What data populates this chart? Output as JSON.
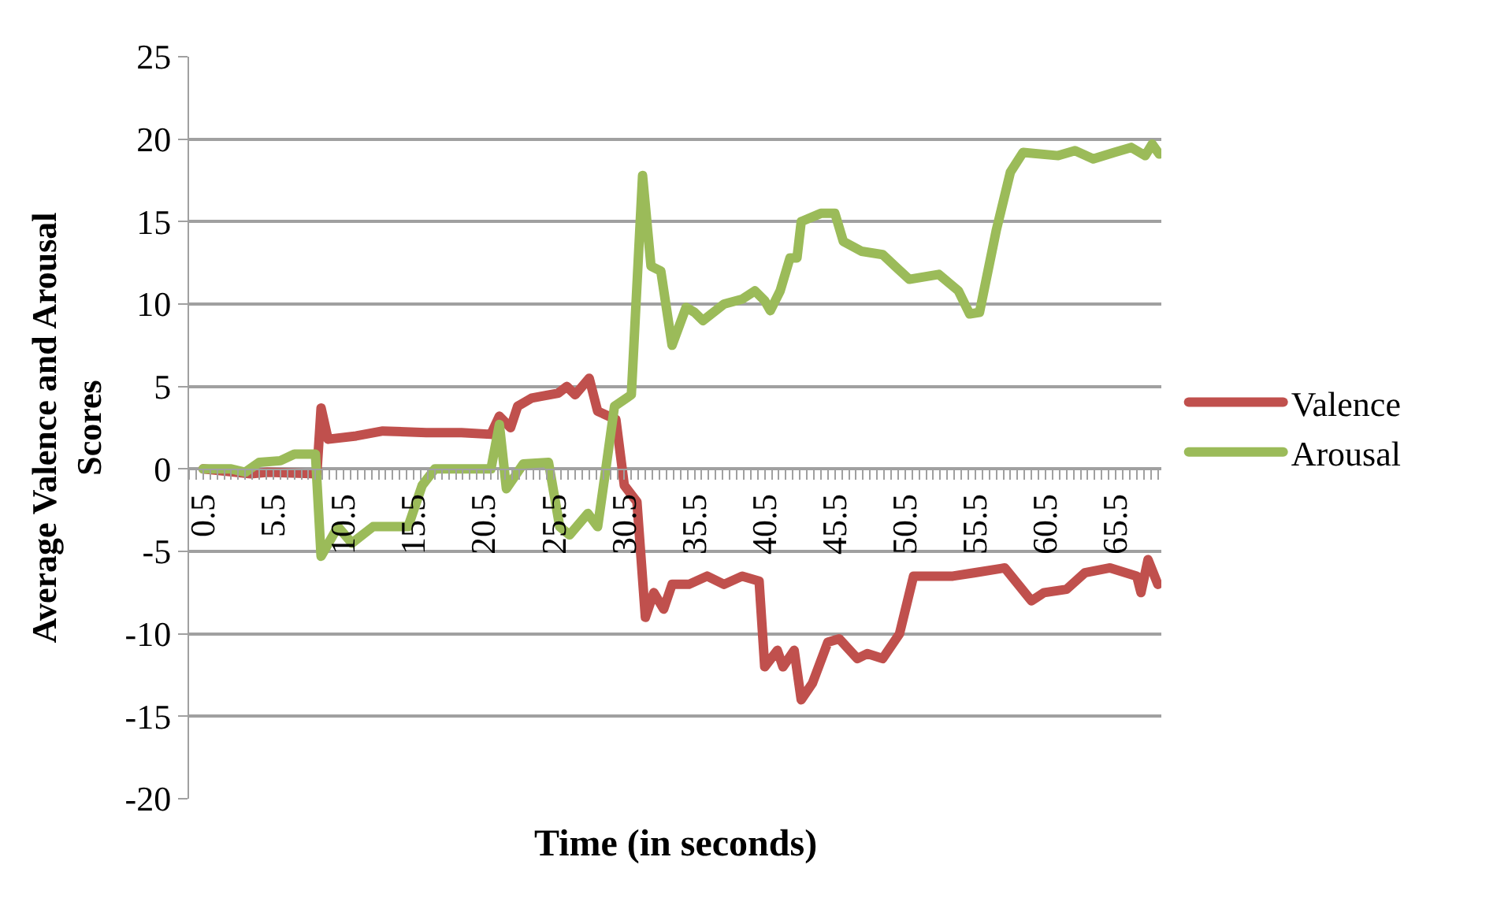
{
  "chart_data": {
    "type": "line",
    "xlabel": "Time (in seconds)",
    "ylabel": "Average Valence and Arousal Scores",
    "xlim": [
      -0.5,
      68.75
    ],
    "xticks": [
      0.5,
      5.5,
      10.5,
      15.5,
      20.5,
      25.5,
      30.5,
      35.5,
      40.5,
      45.5,
      50.5,
      55.5,
      60.5,
      65.5
    ],
    "ylim": [
      -20,
      25
    ],
    "yticks": [
      -20,
      -15,
      -10,
      -5,
      0,
      5,
      10,
      15,
      20,
      25
    ],
    "grid": "y",
    "legend": "right",
    "marker": "none",
    "line_style": "solid",
    "series": [
      {
        "name": "Valence",
        "color": "#c0504d",
        "x": [
          0.5,
          3.9,
          5.1,
          8.6,
          8.9,
          9.4,
          11.4,
          13.3,
          16.4,
          18.9,
          21,
          21.6,
          22.4,
          22.9,
          23.9,
          25.8,
          26.4,
          27,
          28,
          28.6,
          29.9,
          30.5,
          31.4,
          32,
          32.6,
          33.3,
          33.9,
          35.1,
          36.4,
          37.6,
          38.9,
          40.1,
          40.5,
          41.4,
          41.8,
          42.6,
          43.1,
          43.9,
          45,
          45.8,
          47.1,
          47.8,
          48.9,
          50.1,
          51.1,
          53.9,
          55.4,
          57.6,
          59.5,
          60.4,
          62,
          63.3,
          65.1,
          67,
          67.3,
          67.8,
          68.5
        ],
        "values": [
          0,
          -0.3,
          -0.2,
          -0.3,
          3.7,
          1.8,
          2,
          2.3,
          2.2,
          2.2,
          2.1,
          3.2,
          2.5,
          3.8,
          4.3,
          4.6,
          5,
          4.5,
          5.5,
          3.5,
          3,
          -1,
          -2,
          -9,
          -7.5,
          -8.5,
          -7,
          -7,
          -6.5,
          -7,
          -6.5,
          -6.8,
          -12,
          -11,
          -12,
          -11,
          -14,
          -13,
          -10.5,
          -10.3,
          -11.5,
          -11.2,
          -11.5,
          -10,
          -6.5,
          -6.5,
          -6.3,
          -6,
          -8,
          -7.5,
          -7.3,
          -6.3,
          -6,
          -6.5,
          -7.5,
          -5.5,
          -7
        ]
      },
      {
        "name": "Arousal",
        "color": "#9bbb59",
        "x": [
          0.5,
          2.5,
          3.5,
          4.5,
          6,
          7,
          8.5,
          8.9,
          10.1,
          11.1,
          12.6,
          15.1,
          16.1,
          17,
          21,
          21.6,
          22.1,
          23.3,
          25.1,
          25.9,
          26.6,
          27.9,
          28.6,
          29.1,
          29.8,
          31,
          31.8,
          32.4,
          33.1,
          33.9,
          34.9,
          35.5,
          36.1,
          37.6,
          38.9,
          39.8,
          40.5,
          40.9,
          41.6,
          42.3,
          42.8,
          43.1,
          44.5,
          45.5,
          46.1,
          47.4,
          48.9,
          49.9,
          50.8,
          52.9,
          54.3,
          55.1,
          55.8,
          57,
          58,
          58.9,
          61.4,
          62.6,
          63.9,
          65.4,
          66.6,
          67.6,
          68.1,
          68.6
        ],
        "values": [
          0,
          0,
          -0.2,
          0.4,
          0.5,
          0.9,
          0.9,
          -5.3,
          -3.5,
          -4.5,
          -3.5,
          -3.5,
          -1,
          0,
          0,
          2.7,
          -1.2,
          0.3,
          0.4,
          -3.5,
          -4,
          -2.7,
          -3.5,
          -0.5,
          3.8,
          4.5,
          17.8,
          12.3,
          12,
          7.5,
          9.8,
          9.5,
          9,
          10,
          10.3,
          10.8,
          10.2,
          9.6,
          10.8,
          12.8,
          12.8,
          15,
          15.5,
          15.5,
          13.8,
          13.2,
          13,
          12.2,
          11.5,
          11.8,
          10.8,
          9.4,
          9.5,
          14.5,
          18,
          19.2,
          19,
          19.3,
          18.8,
          19.2,
          19.5,
          19,
          19.7,
          19.1
        ]
      }
    ]
  }
}
